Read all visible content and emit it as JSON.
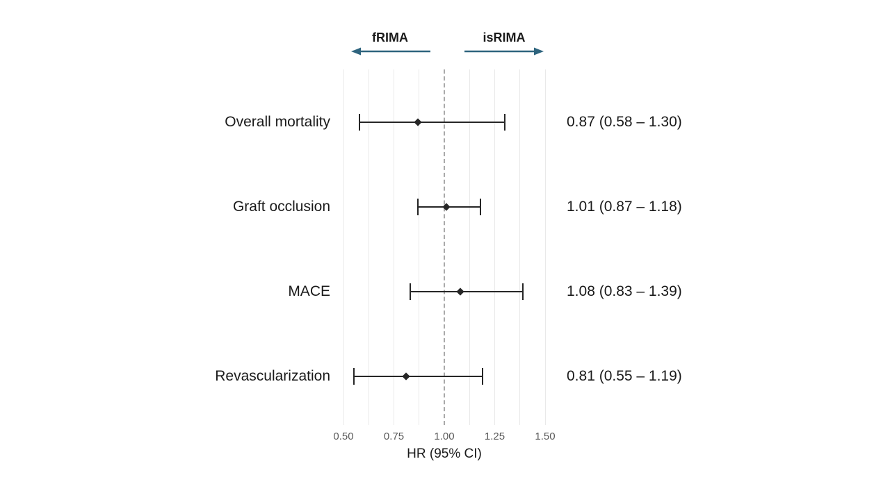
{
  "header": {
    "left_label": "fRIMA",
    "right_label": "isRIMA"
  },
  "colors": {
    "background": "#ffffff",
    "arrow": "#2e647e",
    "text": "#1a1a1a",
    "tick_label": "#595959",
    "gridline": "#e9e9e9",
    "reference_line": "#a9a9a9",
    "marker": "#262626"
  },
  "chart_data": {
    "type": "scatter",
    "variant": "forest-plot",
    "title": "",
    "xlabel": "HR (95% CI)",
    "ylabel": "",
    "xlim": [
      0.5,
      1.5
    ],
    "xticks": [
      {
        "value": 0.5,
        "label": "0.50"
      },
      {
        "value": 0.75,
        "label": "0.75"
      },
      {
        "value": 1.0,
        "label": "1.00"
      },
      {
        "value": 1.25,
        "label": "1.25"
      },
      {
        "value": 1.5,
        "label": "1.50"
      }
    ],
    "gridlines": [
      0.5,
      0.625,
      0.75,
      0.875,
      1.125,
      1.25,
      1.375,
      1.5
    ],
    "reference_line": 1.0,
    "grid": "on",
    "legend": "none",
    "rows": [
      {
        "label": "Overall mortality",
        "hr": 0.87,
        "ci_low": 0.58,
        "ci_high": 1.3,
        "display": "0.87 (0.58 – 1.30)"
      },
      {
        "label": "Graft occlusion",
        "hr": 1.01,
        "ci_low": 0.87,
        "ci_high": 1.18,
        "display": "1.01 (0.87 – 1.18)"
      },
      {
        "label": "MACE",
        "hr": 1.08,
        "ci_low": 0.83,
        "ci_high": 1.39,
        "display": "1.08 (0.83 – 1.39)"
      },
      {
        "label": "Revascularization",
        "hr": 0.81,
        "ci_low": 0.55,
        "ci_high": 1.19,
        "display": "0.81 (0.55 – 1.19)"
      }
    ]
  }
}
